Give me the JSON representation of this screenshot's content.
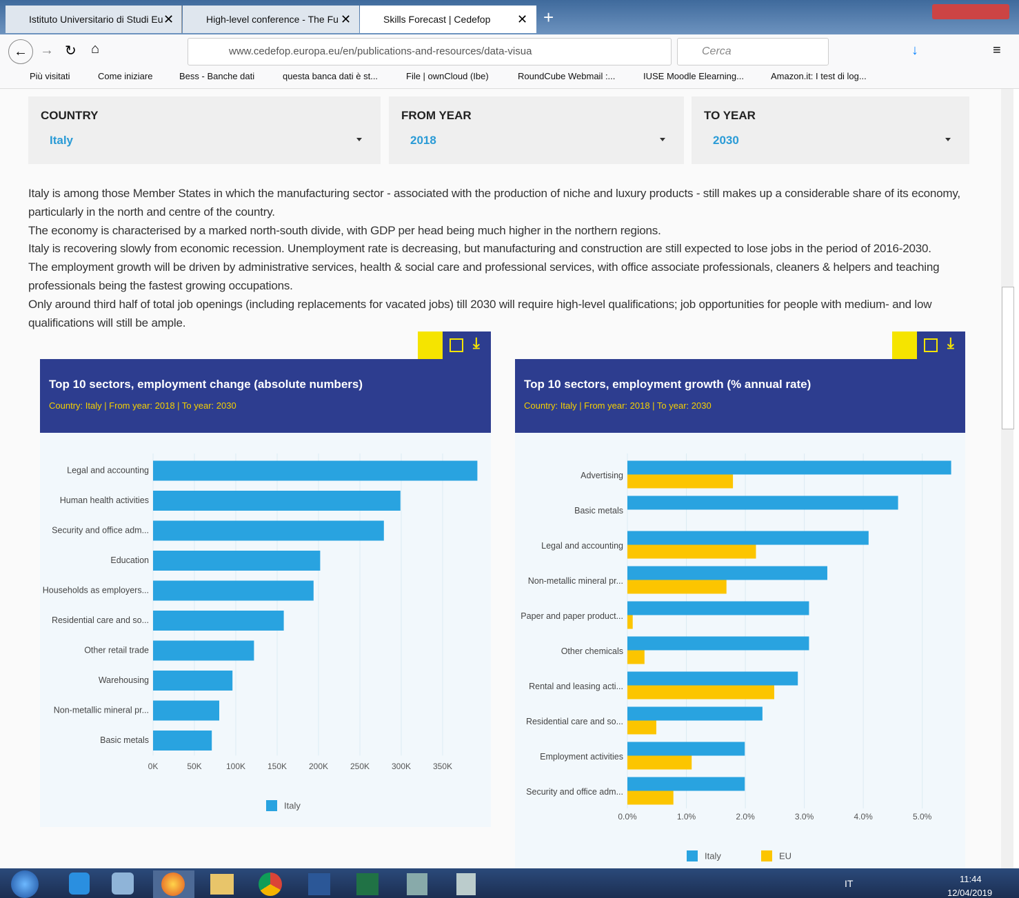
{
  "browser": {
    "tabs": [
      "Istituto Universitario di Studi Eu",
      "High-level conference - The Fu",
      "Skills Forecast | Cedefop"
    ],
    "url": "www.cedefop.europa.eu/en/publications-and-resources/data-visua",
    "search_placeholder": "Cerca",
    "bookmarks": [
      "Più visitati",
      "Come iniziare",
      "Bess - Banche dati",
      "questa banca dati è st...",
      "File | ownCloud (Ibe)",
      "RoundCube Webmail :...",
      "IUSE Moodle Elearning...",
      "Amazon.it: I test di log..."
    ]
  },
  "filters": [
    {
      "label": "COUNTRY",
      "value": "Italy"
    },
    {
      "label": "FROM YEAR",
      "value": "2018"
    },
    {
      "label": "TO YEAR",
      "value": "2030"
    }
  ],
  "description": [
    "Italy is among those Member States in which the manufacturing sector - associated with the production of niche and luxury products - still makes up a considerable share of its economy, particularly in the north and centre of the country.",
    "The economy is characterised by a marked north-south divide, with GDP per head being much higher in the northern regions.",
    "Italy is recovering slowly from economic recession. Unemployment rate is decreasing, but manufacturing and construction are still expected to lose jobs in the period of 2016-2030.",
    "The employment growth will be driven by administrative services, health & social care and professional services, with office associate professionals, cleaners & helpers and teaching professionals being the fastest growing occupations.",
    "Only around third half of total job openings (including replacements for vacated jobs) till 2030 will require high-level qualifications; job opportunities for people with medium- and low qualifications will still be ample."
  ],
  "chart_data": [
    {
      "type": "barh",
      "title": "Top 10 sectors, employment change (absolute numbers)",
      "subtitle": "Country: Italy | From year: 2018 | To year: 2030",
      "categories": [
        "Legal and accounting",
        "Human health activities",
        "Security and office adm...",
        "Education",
        "Households as employers...",
        "Residential care and so...",
        "Other retail trade",
        "Warehousing",
        "Non-metallic mineral pr...",
        "Basic metals"
      ],
      "series": [
        {
          "name": "Italy",
          "color": "#29a3e0",
          "values": [
            392000,
            299000,
            279000,
            202000,
            194000,
            158000,
            122000,
            96000,
            80000,
            71000
          ]
        }
      ],
      "xlim": [
        0,
        400000
      ],
      "xticks": [
        {
          "value": 0,
          "label": "0K"
        },
        {
          "value": 50000,
          "label": "50K"
        },
        {
          "value": 100000,
          "label": "100K"
        },
        {
          "value": 150000,
          "label": "150K"
        },
        {
          "value": 200000,
          "label": "200K"
        },
        {
          "value": 250000,
          "label": "250K"
        },
        {
          "value": 300000,
          "label": "300K"
        },
        {
          "value": 350000,
          "label": "350K"
        }
      ],
      "grid": true
    },
    {
      "type": "barh",
      "title": "Top 10 sectors, employment growth (% annual rate)",
      "subtitle": "Country: Italy | From year: 2018 | To year: 2030",
      "categories": [
        "Advertising",
        "Basic metals",
        "Legal and accounting",
        "Non-metallic mineral pr...",
        "Paper and paper product...",
        "Other chemicals",
        "Rental and leasing acti...",
        "Residential care and so...",
        "Employment activities",
        "Security and office adm..."
      ],
      "series": [
        {
          "name": "Italy",
          "color": "#29a3e0",
          "values": [
            5.49,
            4.59,
            4.09,
            3.39,
            3.08,
            3.08,
            2.89,
            2.29,
            1.99,
            1.99
          ]
        },
        {
          "name": "EU",
          "color": "#fcc500",
          "values": [
            1.79,
            null,
            2.18,
            1.68,
            0.09,
            0.29,
            2.49,
            0.49,
            1.09,
            0.78
          ]
        }
      ],
      "xlim": [
        0,
        5.6
      ],
      "xticks": [
        {
          "value": 0,
          "label": "0.0%"
        },
        {
          "value": 1,
          "label": "1.0%"
        },
        {
          "value": 2,
          "label": "2.0%"
        },
        {
          "value": 3,
          "label": "3.0%"
        },
        {
          "value": 4,
          "label": "4.0%"
        },
        {
          "value": 5,
          "label": "5.0%"
        }
      ],
      "grid": true
    }
  ],
  "taskbar": {
    "language": "IT",
    "time": "11:44",
    "date": "12/04/2019"
  }
}
